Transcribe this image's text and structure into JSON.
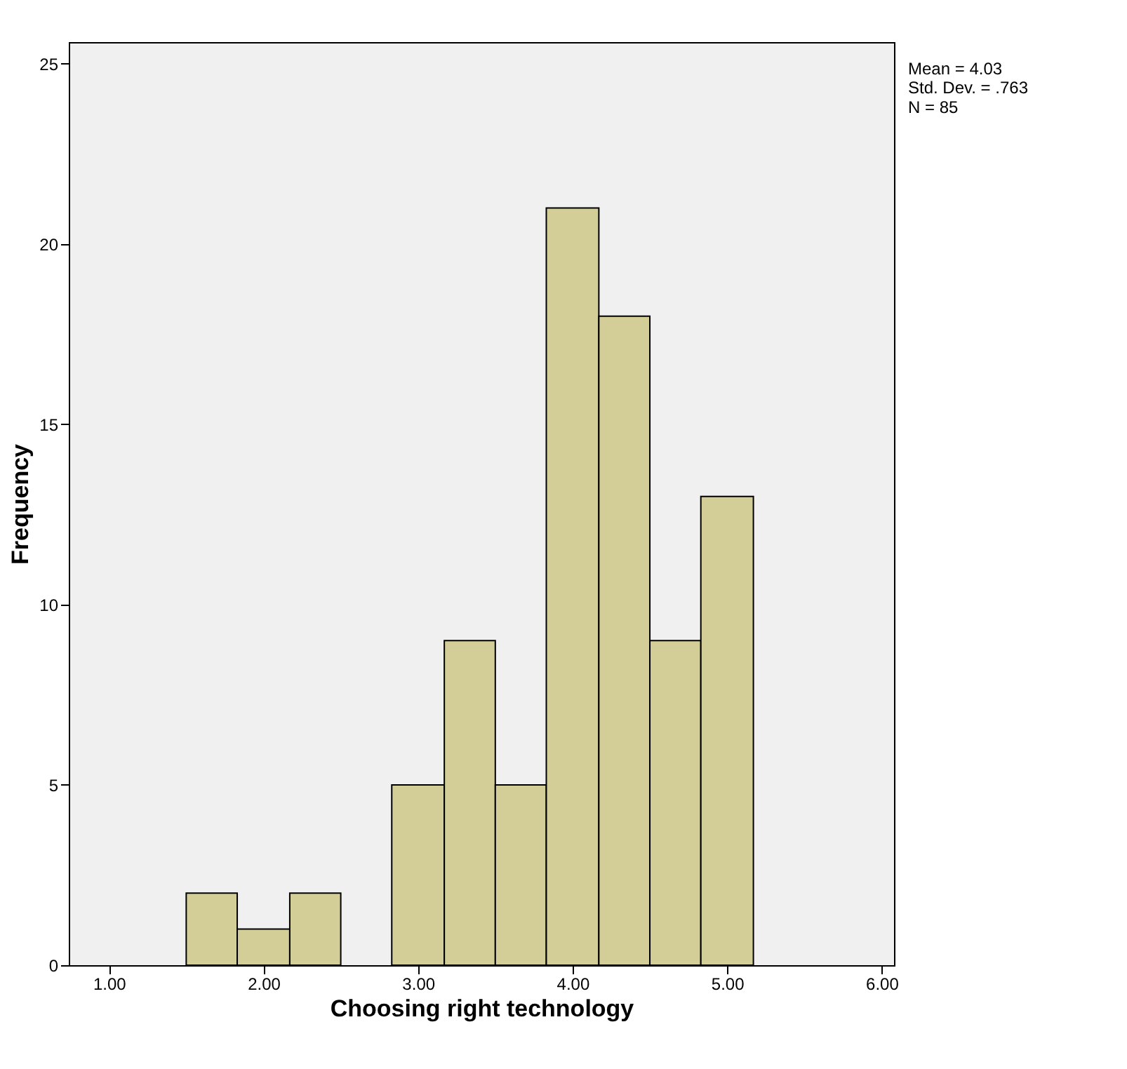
{
  "chart_data": {
    "type": "histogram",
    "xlabel": "Choosing right technology",
    "ylabel": "Frequency",
    "bins": [
      1.5,
      1.83,
      2.17,
      2.5,
      2.83,
      3.17,
      3.5,
      3.83,
      4.17,
      4.5,
      4.83,
      5.17
    ],
    "values": [
      2,
      1,
      2,
      0,
      5,
      9,
      5,
      21,
      18,
      9,
      13
    ],
    "color": "#d3ce97",
    "xlim": [
      0.74,
      6.08
    ],
    "xticks": [
      {
        "value": 1,
        "label": "1.00"
      },
      {
        "value": 2,
        "label": "2.00"
      },
      {
        "value": 3,
        "label": "3.00"
      },
      {
        "value": 4,
        "label": "4.00"
      },
      {
        "value": 5,
        "label": "5.00"
      },
      {
        "value": 6,
        "label": "6.00"
      }
    ],
    "ylim": [
      0,
      25.6
    ],
    "yticks": [
      0,
      5,
      10,
      15,
      20,
      25
    ],
    "grid": false,
    "annotations": [
      "Mean = 4.03",
      "Std. Dev. = .763",
      "N = 85"
    ]
  }
}
